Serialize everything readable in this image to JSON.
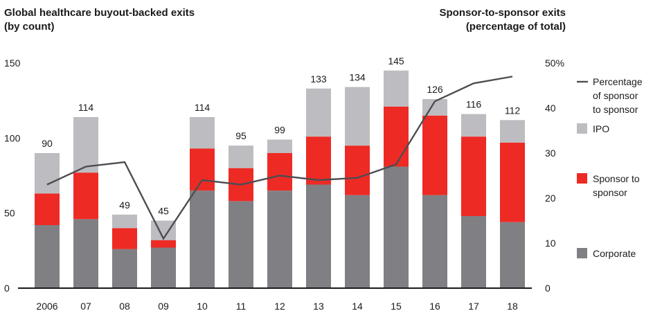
{
  "titles": {
    "left_line1": "Global healthcare buyout-backed exits",
    "left_line2": "(by count)",
    "right_line1": "Sponsor-to-sponsor exits",
    "right_line2": "(percentage of total)"
  },
  "chart_data": {
    "type": "bar",
    "stacked": true,
    "categories": [
      "2006",
      "07",
      "08",
      "09",
      "10",
      "11",
      "12",
      "13",
      "14",
      "15",
      "16",
      "17",
      "18"
    ],
    "series": [
      {
        "name": "Corporate",
        "color": "#808084",
        "values": [
          42,
          46,
          26,
          27,
          65,
          58,
          65,
          69,
          62,
          81,
          62,
          48,
          44
        ]
      },
      {
        "name": "Sponsor to sponsor",
        "color": "#ee2a24",
        "values": [
          21,
          31,
          14,
          5,
          28,
          22,
          25,
          32,
          33,
          40,
          53,
          53,
          53
        ]
      },
      {
        "name": "IPO",
        "color": "#bdbdc1",
        "values": [
          27,
          37,
          9,
          13,
          21,
          15,
          9,
          32,
          39,
          24,
          11,
          15,
          15
        ]
      }
    ],
    "totals": [
      90,
      114,
      49,
      45,
      114,
      95,
      99,
      133,
      134,
      145,
      126,
      116,
      112
    ],
    "line": {
      "name": "Percentage of sponsor to sponsor",
      "color": "#4d4d52",
      "axis": "right",
      "values": [
        23,
        27,
        28,
        11,
        24,
        23,
        25,
        24,
        24.5,
        27.5,
        41.5,
        45.5,
        47
      ]
    },
    "left_axis": {
      "ylim": [
        0,
        150
      ],
      "ticks": [
        "0",
        "50",
        "100",
        "150"
      ]
    },
    "right_axis": {
      "ylim": [
        0,
        50
      ],
      "ticks": [
        "0",
        "10",
        "20",
        "30",
        "40",
        "50%"
      ]
    },
    "legend": {
      "placement": "right",
      "items": [
        {
          "key": "line",
          "lines": [
            "Percentage",
            "of sponsor",
            "to sponsor"
          ]
        },
        {
          "key": "IPO",
          "lines": [
            "IPO"
          ]
        },
        {
          "key": "Sponsor to sponsor",
          "lines": [
            "Sponsor to",
            "sponsor"
          ]
        },
        {
          "key": "Corporate",
          "lines": [
            "Corporate"
          ]
        }
      ]
    }
  }
}
